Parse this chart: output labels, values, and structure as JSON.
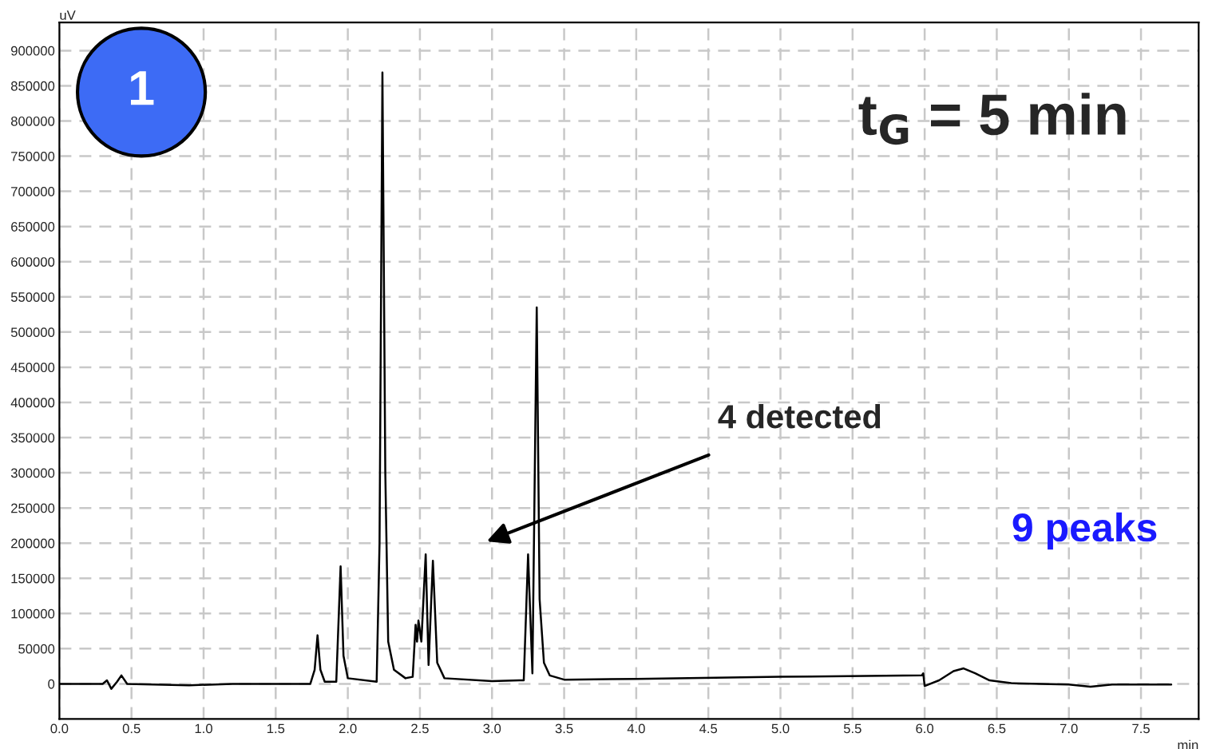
{
  "chart_data": {
    "type": "line",
    "xlabel": "min",
    "ylabel": "uV",
    "x": [
      0.0,
      0.3,
      0.33,
      0.36,
      0.4,
      0.43,
      0.47,
      0.9,
      1.2,
      1.74,
      1.77,
      1.79,
      1.81,
      1.84,
      1.92,
      1.95,
      1.97,
      2.0,
      2.2,
      2.22,
      2.24,
      2.26,
      2.28,
      2.32,
      2.4,
      2.45,
      2.47,
      2.48,
      2.49,
      2.51,
      2.54,
      2.56,
      2.59,
      2.62,
      2.67,
      3.0,
      3.19,
      3.22,
      3.25,
      3.28,
      3.31,
      3.33,
      3.36,
      3.4,
      3.5,
      4.0,
      5.0,
      5.98,
      5.99,
      6.0,
      6.1,
      6.2,
      6.27,
      6.35,
      6.45,
      6.6,
      7.0,
      7.15,
      7.3,
      7.71
    ],
    "series": [
      {
        "color": "#000000",
        "values": [
          0,
          0,
          5000,
          -7000,
          3000,
          12000,
          0,
          -2000,
          0,
          0,
          20000,
          69000,
          20000,
          3000,
          3000,
          167000,
          40000,
          8000,
          3000,
          200000,
          869000,
          300000,
          60000,
          20000,
          8000,
          10000,
          84000,
          60000,
          90000,
          60000,
          184000,
          27000,
          175000,
          30000,
          8000,
          4000,
          5000,
          5000,
          184000,
          15000,
          535000,
          120000,
          30000,
          12000,
          6000,
          7000,
          10000,
          12000,
          15000,
          -3000,
          5000,
          18000,
          22000,
          15000,
          5000,
          1000,
          -1000,
          -4000,
          -1000,
          -1000
        ]
      }
    ],
    "xlim": [
      0,
      7.9
    ],
    "ylim": [
      -50000,
      940000
    ],
    "xticks": [
      {
        "value": 0,
        "label": "0.0"
      },
      {
        "value": 0.5,
        "label": "0.5"
      },
      {
        "value": 1,
        "label": "1.0"
      },
      {
        "value": 1.5,
        "label": "1.5"
      },
      {
        "value": 2,
        "label": "2.0"
      },
      {
        "value": 2.5,
        "label": "2.5"
      },
      {
        "value": 3,
        "label": "3.0"
      },
      {
        "value": 3.5,
        "label": "3.5"
      },
      {
        "value": 4,
        "label": "4.0"
      },
      {
        "value": 4.5,
        "label": "4.5"
      },
      {
        "value": 5,
        "label": "5.0"
      },
      {
        "value": 5.5,
        "label": "5.5"
      },
      {
        "value": 6,
        "label": "6.0"
      },
      {
        "value": 6.5,
        "label": "6.5"
      },
      {
        "value": 7,
        "label": "7.0"
      },
      {
        "value": 7.5,
        "label": "7.5"
      }
    ],
    "yticks": [
      0,
      50000,
      100000,
      150000,
      200000,
      250000,
      300000,
      350000,
      400000,
      450000,
      500000,
      550000,
      600000,
      650000,
      700000,
      750000,
      800000,
      850000,
      900000
    ],
    "grid": true,
    "line_style": "solid",
    "marker": "none",
    "annotations": [
      "1",
      "t$_{G}$ = 5 min",
      "4 detected",
      "9 peaks"
    ]
  }
}
